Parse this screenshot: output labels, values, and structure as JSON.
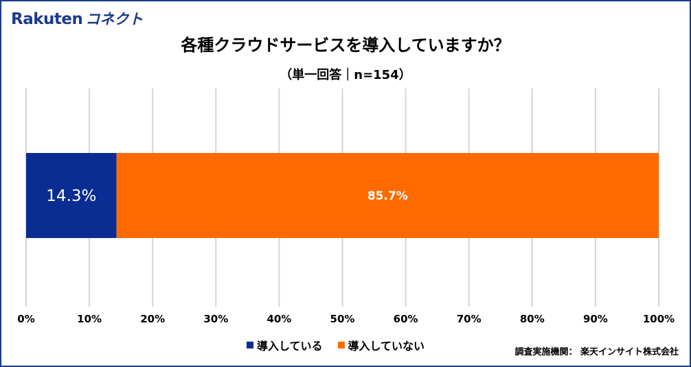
{
  "logo": {
    "main": "Rakuten",
    "sub": "コネクト",
    "color": "#1b3a8c"
  },
  "chart_data": {
    "type": "bar",
    "orientation": "horizontal",
    "stacked": true,
    "title": "各種クラウドサービスを導入していますか？",
    "subtitle": "（単一回答｜n=154）",
    "categories": [
      ""
    ],
    "series": [
      {
        "name": "導入している",
        "values": [
          14.3
        ],
        "label": "14.3%",
        "color": "#0a2d94"
      },
      {
        "name": "導入していない",
        "values": [
          85.7
        ],
        "label": "85.7%",
        "color": "#ff6a00"
      }
    ],
    "xlim": [
      0,
      100
    ],
    "xticks": [
      "0%",
      "10%",
      "20%",
      "30%",
      "40%",
      "50%",
      "60%",
      "70%",
      "80%",
      "90%",
      "100%"
    ],
    "grid": true,
    "legend": "bottom"
  },
  "source": "調査実施機関： 楽天インサイト株式会社"
}
